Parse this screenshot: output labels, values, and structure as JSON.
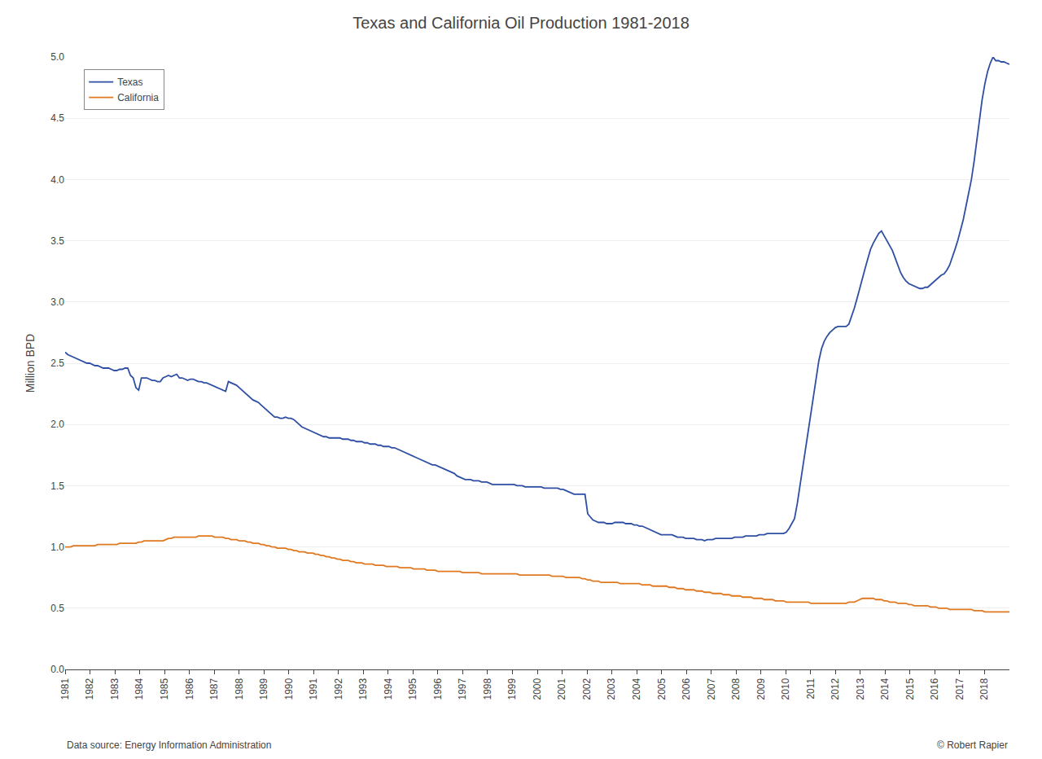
{
  "chart_data": {
    "type": "line",
    "title": "Texas and California Oil Production 1981-2018",
    "ylabel": "Million BPD",
    "annotations": [
      "Data source: Energy Information Administration",
      "© Robert Rapier"
    ],
    "legend": "upper left",
    "grid": "y",
    "xlim": [
      1981,
      2019
    ],
    "xticks": [
      1981,
      1982,
      1983,
      1984,
      1985,
      1986,
      1987,
      1988,
      1989,
      1990,
      1991,
      1992,
      1993,
      1994,
      1995,
      1996,
      1997,
      1998,
      1999,
      2000,
      2001,
      2002,
      2003,
      2004,
      2005,
      2006,
      2007,
      2008,
      2009,
      2010,
      2011,
      2012,
      2013,
      2014,
      2015,
      2016,
      2017,
      2018
    ],
    "ylim": [
      0.0,
      5.0
    ],
    "yticks": [
      {
        "value": 0.0,
        "label": "0.0"
      },
      0.5,
      {
        "value": 1.0,
        "label": "1.0"
      },
      1.5,
      {
        "value": 2.0,
        "label": "2.0"
      },
      2.5,
      {
        "value": 3.0,
        "label": "3.0"
      },
      3.5,
      {
        "value": 4.0,
        "label": "4.0"
      },
      4.5,
      {
        "value": 5.0,
        "label": "5.0"
      }
    ],
    "x": [
      1981.0,
      1981.11,
      1981.22,
      1981.33,
      1981.44,
      1981.55,
      1981.66,
      1981.77,
      1981.88,
      1981.99,
      1982.1,
      1982.2,
      1982.31,
      1982.42,
      1982.53,
      1982.64,
      1982.75,
      1982.86,
      1982.97,
      1983.08,
      1983.19,
      1983.3,
      1983.41,
      1983.52,
      1983.63,
      1983.74,
      1983.85,
      1983.96,
      1984.07,
      1984.18,
      1984.29,
      1984.39,
      1984.5,
      1984.61,
      1984.72,
      1984.83,
      1984.94,
      1985.05,
      1985.16,
      1985.27,
      1985.38,
      1985.49,
      1985.6,
      1985.71,
      1985.82,
      1985.93,
      1986.04,
      1986.15,
      1986.26,
      1986.37,
      1986.48,
      1986.59,
      1986.69,
      1986.8,
      1986.91,
      1987.02,
      1987.13,
      1987.24,
      1987.35,
      1987.46,
      1987.57,
      1987.68,
      1987.79,
      1987.9,
      1988.01,
      1988.12,
      1988.23,
      1988.34,
      1988.45,
      1988.56,
      1988.67,
      1988.78,
      1988.88,
      1988.99,
      1989.1,
      1989.21,
      1989.32,
      1989.43,
      1989.54,
      1989.65,
      1989.76,
      1989.87,
      1989.98,
      1990.09,
      1990.2,
      1990.31,
      1990.42,
      1990.53,
      1990.64,
      1990.75,
      1990.86,
      1990.97,
      1991.07,
      1991.18,
      1991.29,
      1991.4,
      1991.51,
      1991.62,
      1991.73,
      1991.84,
      1991.95,
      1992.06,
      1992.17,
      1992.28,
      1992.39,
      1992.5,
      1992.61,
      1992.72,
      1992.83,
      1992.94,
      1993.05,
      1993.16,
      1993.27,
      1993.37,
      1993.48,
      1993.59,
      1993.7,
      1993.81,
      1993.92,
      1994.03,
      1994.14,
      1994.25,
      1994.36,
      1994.47,
      1994.58,
      1994.69,
      1994.8,
      1994.91,
      1995.02,
      1995.13,
      1995.24,
      1995.35,
      1995.46,
      1995.56,
      1995.67,
      1995.78,
      1995.89,
      1996.0,
      1996.11,
      1996.22,
      1996.33,
      1996.44,
      1996.55,
      1996.66,
      1996.77,
      1996.88,
      1996.99,
      1997.1,
      1997.21,
      1997.32,
      1997.43,
      1997.54,
      1997.65,
      1997.76,
      1997.86,
      1997.97,
      1998.08,
      1998.19,
      1998.3,
      1998.41,
      1998.52,
      1998.63,
      1998.74,
      1998.85,
      1998.96,
      1999.07,
      1999.18,
      1999.29,
      1999.4,
      1999.51,
      1999.62,
      1999.73,
      1999.84,
      1999.95,
      2000.05,
      2000.16,
      2000.27,
      2000.38,
      2000.49,
      2000.6,
      2000.71,
      2000.82,
      2000.93,
      2001.04,
      2001.15,
      2001.26,
      2001.37,
      2001.48,
      2001.59,
      2001.7,
      2001.81,
      2001.92,
      2002.03,
      2002.14,
      2002.24,
      2002.35,
      2002.46,
      2002.57,
      2002.68,
      2002.79,
      2002.9,
      2003.01,
      2003.12,
      2003.23,
      2003.34,
      2003.45,
      2003.56,
      2003.67,
      2003.78,
      2003.89,
      2004.0,
      2004.11,
      2004.22,
      2004.33,
      2004.44,
      2004.54,
      2004.65,
      2004.76,
      2004.87,
      2004.98,
      2005.09,
      2005.2,
      2005.31,
      2005.42,
      2005.53,
      2005.64,
      2005.75,
      2005.86,
      2005.97,
      2006.08,
      2006.19,
      2006.3,
      2006.41,
      2006.52,
      2006.63,
      2006.73,
      2006.84,
      2006.95,
      2007.06,
      2007.17,
      2007.28,
      2007.39,
      2007.5,
      2007.61,
      2007.72,
      2007.83,
      2007.94,
      2008.05,
      2008.16,
      2008.27,
      2008.38,
      2008.49,
      2008.6,
      2008.71,
      2008.82,
      2008.93,
      2009.03,
      2009.14,
      2009.25,
      2009.36,
      2009.47,
      2009.58,
      2009.69,
      2009.8,
      2009.91,
      2010.02,
      2010.13,
      2010.24,
      2010.35,
      2010.46,
      2010.57,
      2010.68,
      2010.79,
      2010.9,
      2011.01,
      2011.12,
      2011.22,
      2011.33,
      2011.44,
      2011.55,
      2011.66,
      2011.77,
      2011.88,
      2011.99,
      2012.1,
      2012.21,
      2012.32,
      2012.43,
      2012.54,
      2012.65,
      2012.76,
      2012.87,
      2012.98,
      2013.09,
      2013.2,
      2013.31,
      2013.41,
      2013.52,
      2013.63,
      2013.74,
      2013.85,
      2013.96,
      2014.07,
      2014.18,
      2014.29,
      2014.4,
      2014.51,
      2014.62,
      2014.73,
      2014.84,
      2014.95,
      2015.06,
      2015.17,
      2015.28,
      2015.39,
      2015.5,
      2015.61,
      2015.71,
      2015.82,
      2015.93,
      2016.04,
      2016.15,
      2016.26,
      2016.37,
      2016.48,
      2016.59,
      2016.7,
      2016.81,
      2016.92,
      2017.03,
      2017.14,
      2017.25,
      2017.36,
      2017.47,
      2017.58,
      2017.69,
      2017.8,
      2017.9,
      2018.01,
      2018.12,
      2018.23,
      2018.34,
      2018.45,
      2018.56,
      2018.67,
      2018.78,
      2018.89,
      2019.0
    ],
    "series": [
      {
        "name": "Texas",
        "color": "#2e4fa3",
        "values": [
          2.59,
          2.57,
          2.56,
          2.55,
          2.54,
          2.53,
          2.52,
          2.51,
          2.5,
          2.5,
          2.49,
          2.48,
          2.48,
          2.47,
          2.46,
          2.46,
          2.46,
          2.45,
          2.44,
          2.44,
          2.45,
          2.45,
          2.46,
          2.46,
          2.4,
          2.38,
          2.3,
          2.28,
          2.38,
          2.38,
          2.38,
          2.37,
          2.36,
          2.36,
          2.35,
          2.35,
          2.38,
          2.39,
          2.4,
          2.39,
          2.4,
          2.41,
          2.38,
          2.38,
          2.37,
          2.36,
          2.37,
          2.37,
          2.36,
          2.35,
          2.35,
          2.34,
          2.34,
          2.33,
          2.32,
          2.31,
          2.3,
          2.29,
          2.28,
          2.27,
          2.35,
          2.34,
          2.33,
          2.32,
          2.3,
          2.28,
          2.26,
          2.24,
          2.22,
          2.2,
          2.19,
          2.18,
          2.16,
          2.14,
          2.12,
          2.1,
          2.08,
          2.06,
          2.06,
          2.05,
          2.05,
          2.06,
          2.05,
          2.05,
          2.04,
          2.02,
          2.0,
          1.98,
          1.97,
          1.96,
          1.95,
          1.94,
          1.93,
          1.92,
          1.91,
          1.9,
          1.9,
          1.89,
          1.89,
          1.89,
          1.89,
          1.89,
          1.88,
          1.88,
          1.88,
          1.87,
          1.87,
          1.86,
          1.86,
          1.86,
          1.85,
          1.85,
          1.84,
          1.84,
          1.84,
          1.83,
          1.83,
          1.82,
          1.82,
          1.82,
          1.81,
          1.81,
          1.8,
          1.79,
          1.78,
          1.77,
          1.76,
          1.75,
          1.74,
          1.73,
          1.72,
          1.71,
          1.7,
          1.69,
          1.68,
          1.67,
          1.67,
          1.66,
          1.65,
          1.64,
          1.63,
          1.62,
          1.61,
          1.6,
          1.58,
          1.57,
          1.56,
          1.55,
          1.55,
          1.55,
          1.54,
          1.54,
          1.54,
          1.53,
          1.53,
          1.53,
          1.52,
          1.51,
          1.51,
          1.51,
          1.51,
          1.51,
          1.51,
          1.51,
          1.51,
          1.51,
          1.5,
          1.5,
          1.5,
          1.49,
          1.49,
          1.49,
          1.49,
          1.49,
          1.49,
          1.49,
          1.48,
          1.48,
          1.48,
          1.48,
          1.48,
          1.48,
          1.47,
          1.47,
          1.46,
          1.45,
          1.44,
          1.43,
          1.43,
          1.43,
          1.43,
          1.43,
          1.27,
          1.24,
          1.22,
          1.21,
          1.2,
          1.2,
          1.2,
          1.19,
          1.19,
          1.19,
          1.2,
          1.2,
          1.2,
          1.2,
          1.19,
          1.19,
          1.19,
          1.18,
          1.18,
          1.17,
          1.17,
          1.16,
          1.15,
          1.14,
          1.13,
          1.12,
          1.11,
          1.1,
          1.1,
          1.1,
          1.1,
          1.1,
          1.09,
          1.08,
          1.08,
          1.08,
          1.07,
          1.07,
          1.07,
          1.07,
          1.06,
          1.06,
          1.06,
          1.05,
          1.06,
          1.06,
          1.06,
          1.07,
          1.07,
          1.07,
          1.07,
          1.07,
          1.07,
          1.07,
          1.08,
          1.08,
          1.08,
          1.08,
          1.09,
          1.09,
          1.09,
          1.09,
          1.09,
          1.1,
          1.1,
          1.1,
          1.11,
          1.11,
          1.11,
          1.11,
          1.11,
          1.11,
          1.11,
          1.12,
          1.15,
          1.19,
          1.23,
          1.35,
          1.5,
          1.65,
          1.8,
          1.95,
          2.1,
          2.25,
          2.4,
          2.52,
          2.62,
          2.68,
          2.72,
          2.75,
          2.77,
          2.79,
          2.8,
          2.8,
          2.8,
          2.8,
          2.82,
          2.88,
          2.95,
          3.03,
          3.12,
          3.2,
          3.28,
          3.36,
          3.43,
          3.48,
          3.52,
          3.56,
          3.58,
          3.54,
          3.5,
          3.46,
          3.42,
          3.36,
          3.3,
          3.24,
          3.2,
          3.17,
          3.15,
          3.14,
          3.13,
          3.12,
          3.11,
          3.11,
          3.12,
          3.12,
          3.14,
          3.16,
          3.18,
          3.2,
          3.22,
          3.23,
          3.26,
          3.3,
          3.36,
          3.43,
          3.5,
          3.58,
          3.67,
          3.78,
          3.89,
          4.0,
          4.15,
          4.32,
          4.5,
          4.65,
          4.78,
          4.88,
          4.95,
          5.0,
          4.97,
          4.97,
          4.96,
          4.96,
          4.95,
          4.94
        ]
      },
      {
        "name": "California",
        "color": "#e07820",
        "values": [
          1.0,
          1.0,
          1.0,
          1.01,
          1.01,
          1.01,
          1.01,
          1.01,
          1.01,
          1.01,
          1.01,
          1.01,
          1.02,
          1.02,
          1.02,
          1.02,
          1.02,
          1.02,
          1.02,
          1.02,
          1.03,
          1.03,
          1.03,
          1.03,
          1.03,
          1.03,
          1.03,
          1.04,
          1.04,
          1.05,
          1.05,
          1.05,
          1.05,
          1.05,
          1.05,
          1.05,
          1.05,
          1.06,
          1.07,
          1.07,
          1.08,
          1.08,
          1.08,
          1.08,
          1.08,
          1.08,
          1.08,
          1.08,
          1.08,
          1.09,
          1.09,
          1.09,
          1.09,
          1.09,
          1.09,
          1.08,
          1.08,
          1.08,
          1.08,
          1.07,
          1.07,
          1.06,
          1.06,
          1.06,
          1.05,
          1.05,
          1.05,
          1.04,
          1.04,
          1.03,
          1.03,
          1.03,
          1.02,
          1.02,
          1.01,
          1.01,
          1.0,
          1.0,
          0.99,
          0.99,
          0.99,
          0.99,
          0.98,
          0.98,
          0.97,
          0.97,
          0.96,
          0.96,
          0.96,
          0.95,
          0.95,
          0.95,
          0.94,
          0.94,
          0.93,
          0.93,
          0.92,
          0.92,
          0.91,
          0.91,
          0.9,
          0.9,
          0.89,
          0.89,
          0.89,
          0.88,
          0.88,
          0.87,
          0.87,
          0.87,
          0.86,
          0.86,
          0.86,
          0.86,
          0.85,
          0.85,
          0.85,
          0.85,
          0.84,
          0.84,
          0.84,
          0.84,
          0.84,
          0.83,
          0.83,
          0.83,
          0.83,
          0.83,
          0.82,
          0.82,
          0.82,
          0.82,
          0.82,
          0.81,
          0.81,
          0.81,
          0.81,
          0.8,
          0.8,
          0.8,
          0.8,
          0.8,
          0.8,
          0.8,
          0.8,
          0.8,
          0.79,
          0.79,
          0.79,
          0.79,
          0.79,
          0.79,
          0.79,
          0.78,
          0.78,
          0.78,
          0.78,
          0.78,
          0.78,
          0.78,
          0.78,
          0.78,
          0.78,
          0.78,
          0.78,
          0.78,
          0.78,
          0.77,
          0.77,
          0.77,
          0.77,
          0.77,
          0.77,
          0.77,
          0.77,
          0.77,
          0.77,
          0.77,
          0.77,
          0.76,
          0.76,
          0.76,
          0.76,
          0.76,
          0.75,
          0.75,
          0.75,
          0.75,
          0.75,
          0.75,
          0.74,
          0.74,
          0.73,
          0.73,
          0.72,
          0.72,
          0.72,
          0.71,
          0.71,
          0.71,
          0.71,
          0.71,
          0.71,
          0.71,
          0.7,
          0.7,
          0.7,
          0.7,
          0.7,
          0.7,
          0.7,
          0.7,
          0.69,
          0.69,
          0.69,
          0.69,
          0.68,
          0.68,
          0.68,
          0.68,
          0.68,
          0.68,
          0.67,
          0.67,
          0.67,
          0.66,
          0.66,
          0.66,
          0.65,
          0.65,
          0.65,
          0.65,
          0.64,
          0.64,
          0.64,
          0.63,
          0.63,
          0.63,
          0.62,
          0.62,
          0.62,
          0.62,
          0.61,
          0.61,
          0.61,
          0.6,
          0.6,
          0.6,
          0.6,
          0.59,
          0.59,
          0.59,
          0.59,
          0.58,
          0.58,
          0.58,
          0.58,
          0.57,
          0.57,
          0.57,
          0.57,
          0.56,
          0.56,
          0.56,
          0.56,
          0.55,
          0.55,
          0.55,
          0.55,
          0.55,
          0.55,
          0.55,
          0.55,
          0.55,
          0.54,
          0.54,
          0.54,
          0.54,
          0.54,
          0.54,
          0.54,
          0.54,
          0.54,
          0.54,
          0.54,
          0.54,
          0.54,
          0.54,
          0.55,
          0.55,
          0.55,
          0.56,
          0.57,
          0.58,
          0.58,
          0.58,
          0.58,
          0.58,
          0.57,
          0.57,
          0.57,
          0.56,
          0.56,
          0.55,
          0.55,
          0.55,
          0.54,
          0.54,
          0.54,
          0.54,
          0.53,
          0.53,
          0.52,
          0.52,
          0.52,
          0.52,
          0.52,
          0.52,
          0.51,
          0.51,
          0.51,
          0.5,
          0.5,
          0.5,
          0.5,
          0.49,
          0.49,
          0.49,
          0.49,
          0.49,
          0.49,
          0.49,
          0.49,
          0.49,
          0.48,
          0.48,
          0.48,
          0.48,
          0.47,
          0.47,
          0.47,
          0.47,
          0.47,
          0.47,
          0.47,
          0.47,
          0.47,
          0.47
        ]
      }
    ]
  }
}
